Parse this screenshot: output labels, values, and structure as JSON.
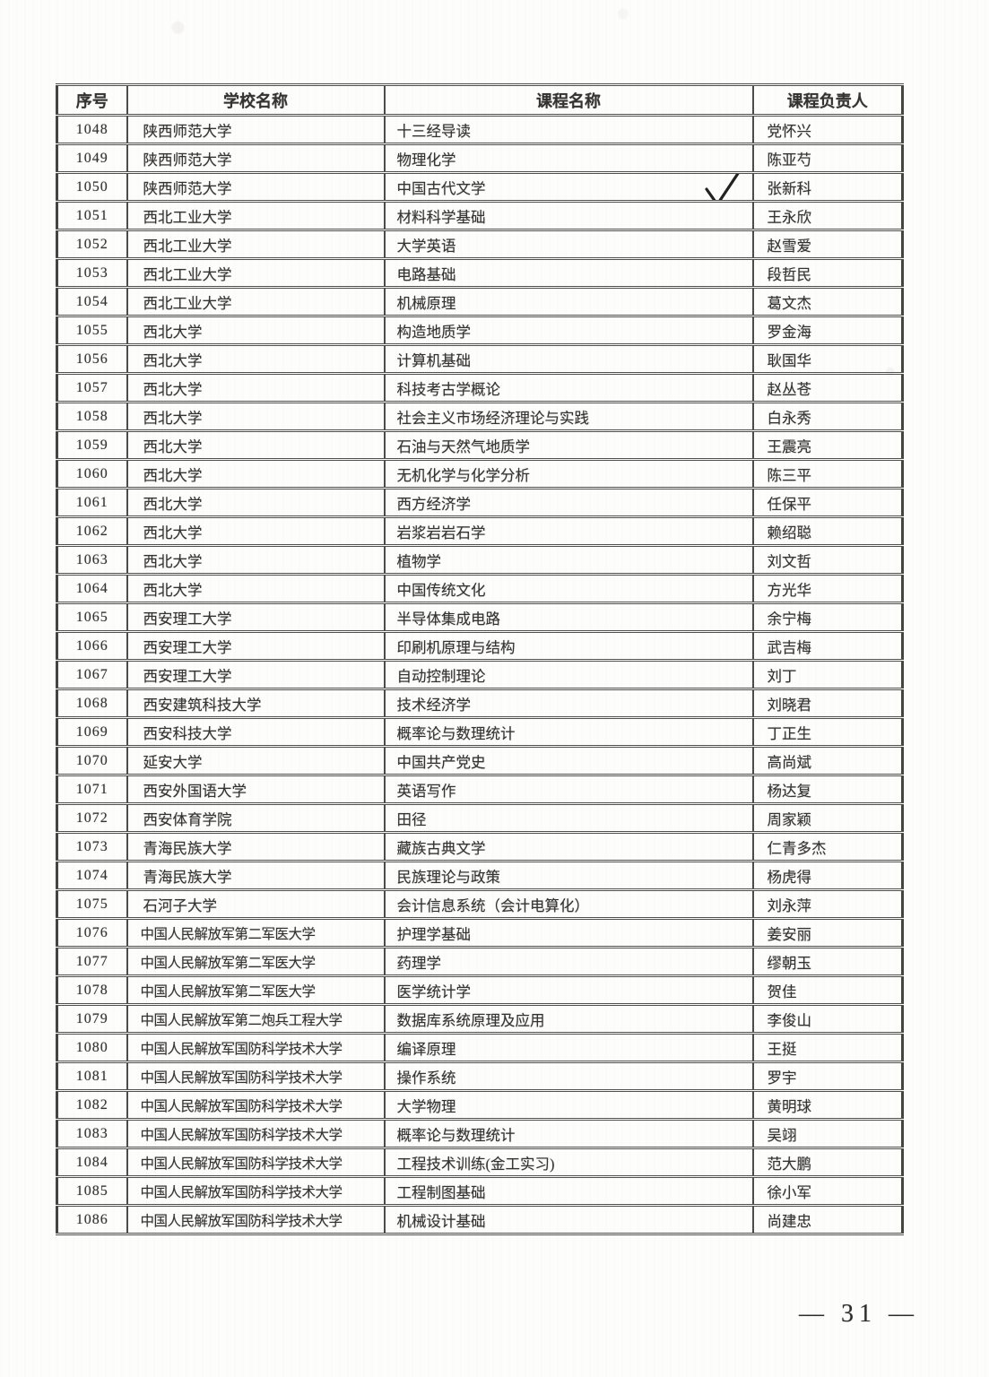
{
  "page": {
    "number_label": "— 31 —"
  },
  "table": {
    "headers": [
      "序号",
      "学校名称",
      "课程名称",
      "课程负责人"
    ],
    "rows": [
      {
        "no": "1048",
        "school": "陕西师范大学",
        "course": "十三经导读",
        "leader": "党怀兴",
        "checked": false
      },
      {
        "no": "1049",
        "school": "陕西师范大学",
        "course": "物理化学",
        "leader": "陈亚芍",
        "checked": false
      },
      {
        "no": "1050",
        "school": "陕西师范大学",
        "course": "中国古代文学",
        "leader": "张新科",
        "checked": true
      },
      {
        "no": "1051",
        "school": "西北工业大学",
        "course": "材料科学基础",
        "leader": "王永欣",
        "checked": false
      },
      {
        "no": "1052",
        "school": "西北工业大学",
        "course": "大学英语",
        "leader": "赵雪爱",
        "checked": false
      },
      {
        "no": "1053",
        "school": "西北工业大学",
        "course": "电路基础",
        "leader": "段哲民",
        "checked": false
      },
      {
        "no": "1054",
        "school": "西北工业大学",
        "course": "机械原理",
        "leader": "葛文杰",
        "checked": false
      },
      {
        "no": "1055",
        "school": "西北大学",
        "course": "构造地质学",
        "leader": "罗金海",
        "checked": false
      },
      {
        "no": "1056",
        "school": "西北大学",
        "course": "计算机基础",
        "leader": "耿国华",
        "checked": false
      },
      {
        "no": "1057",
        "school": "西北大学",
        "course": "科技考古学概论",
        "leader": "赵丛苍",
        "checked": false
      },
      {
        "no": "1058",
        "school": "西北大学",
        "course": "社会主义市场经济理论与实践",
        "leader": "白永秀",
        "checked": false
      },
      {
        "no": "1059",
        "school": "西北大学",
        "course": "石油与天然气地质学",
        "leader": "王震亮",
        "checked": false
      },
      {
        "no": "1060",
        "school": "西北大学",
        "course": "无机化学与化学分析",
        "leader": "陈三平",
        "checked": false
      },
      {
        "no": "1061",
        "school": "西北大学",
        "course": "西方经济学",
        "leader": "任保平",
        "checked": false
      },
      {
        "no": "1062",
        "school": "西北大学",
        "course": "岩浆岩岩石学",
        "leader": "赖绍聪",
        "checked": false
      },
      {
        "no": "1063",
        "school": "西北大学",
        "course": "植物学",
        "leader": "刘文哲",
        "checked": false
      },
      {
        "no": "1064",
        "school": "西北大学",
        "course": "中国传统文化",
        "leader": "方光华",
        "checked": false
      },
      {
        "no": "1065",
        "school": "西安理工大学",
        "course": "半导体集成电路",
        "leader": "余宁梅",
        "checked": false
      },
      {
        "no": "1066",
        "school": "西安理工大学",
        "course": "印刷机原理与结构",
        "leader": "武吉梅",
        "checked": false
      },
      {
        "no": "1067",
        "school": "西安理工大学",
        "course": "自动控制理论",
        "leader": "刘丁",
        "checked": false
      },
      {
        "no": "1068",
        "school": "西安建筑科技大学",
        "course": "技术经济学",
        "leader": "刘晓君",
        "checked": false
      },
      {
        "no": "1069",
        "school": "西安科技大学",
        "course": "概率论与数理统计",
        "leader": "丁正生",
        "checked": false
      },
      {
        "no": "1070",
        "school": "延安大学",
        "course": "中国共产党史",
        "leader": "高尚斌",
        "checked": false
      },
      {
        "no": "1071",
        "school": "西安外国语大学",
        "course": "英语写作",
        "leader": "杨达复",
        "checked": false
      },
      {
        "no": "1072",
        "school": "西安体育学院",
        "course": "田径",
        "leader": "周家颖",
        "checked": false
      },
      {
        "no": "1073",
        "school": "青海民族大学",
        "course": "藏族古典文学",
        "leader": "仁青多杰",
        "checked": false
      },
      {
        "no": "1074",
        "school": "青海民族大学",
        "course": "民族理论与政策",
        "leader": "杨虎得",
        "checked": false
      },
      {
        "no": "1075",
        "school": "石河子大学",
        "course": "会计信息系统（会计电算化）",
        "leader": "刘永萍",
        "checked": false
      },
      {
        "no": "1076",
        "school": "中国人民解放军第二军医大学",
        "course": "护理学基础",
        "leader": "姜安丽",
        "checked": false
      },
      {
        "no": "1077",
        "school": "中国人民解放军第二军医大学",
        "course": "药理学",
        "leader": "缪朝玉",
        "checked": false
      },
      {
        "no": "1078",
        "school": "中国人民解放军第二军医大学",
        "course": "医学统计学",
        "leader": "贺佳",
        "checked": false
      },
      {
        "no": "1079",
        "school": "中国人民解放军第二炮兵工程大学",
        "course": "数据库系统原理及应用",
        "leader": "李俊山",
        "checked": false
      },
      {
        "no": "1080",
        "school": "中国人民解放军国防科学技术大学",
        "course": "编译原理",
        "leader": "王挺",
        "checked": false
      },
      {
        "no": "1081",
        "school": "中国人民解放军国防科学技术大学",
        "course": "操作系统",
        "leader": "罗宇",
        "checked": false
      },
      {
        "no": "1082",
        "school": "中国人民解放军国防科学技术大学",
        "course": "大学物理",
        "leader": "黄明球",
        "checked": false
      },
      {
        "no": "1083",
        "school": "中国人民解放军国防科学技术大学",
        "course": "概率论与数理统计",
        "leader": "吴翊",
        "checked": false
      },
      {
        "no": "1084",
        "school": "中国人民解放军国防科学技术大学",
        "course": "工程技术训练(金工实习)",
        "leader": "范大鹏",
        "checked": false
      },
      {
        "no": "1085",
        "school": "中国人民解放军国防科学技术大学",
        "course": "工程制图基础",
        "leader": "徐小军",
        "checked": false
      },
      {
        "no": "1086",
        "school": "中国人民解放军国防科学技术大学",
        "course": "机械设计基础",
        "leader": "尚建忠",
        "checked": false
      }
    ]
  },
  "annotations": {
    "checkmark_color": "#23221f",
    "border_color": "#4d4c4a"
  }
}
